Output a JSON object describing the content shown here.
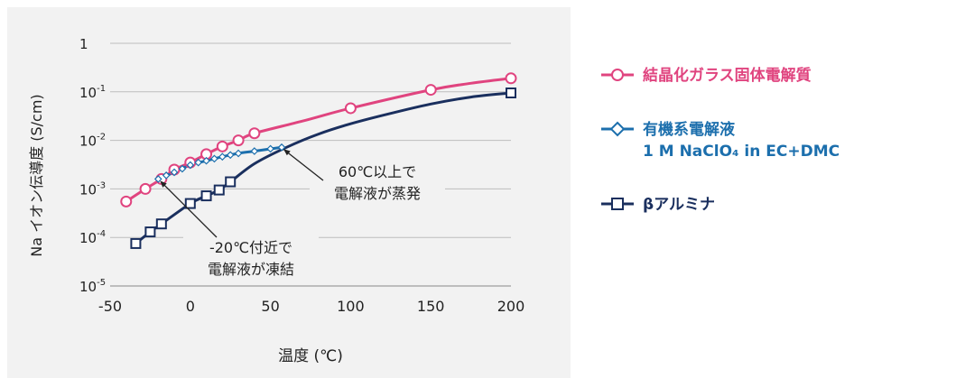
{
  "chart_data": {
    "type": "scatter",
    "title": "",
    "xlabel": "温度 (℃)",
    "ylabel": "Na イオン伝導度 (S/cm)",
    "xlim": [
      -50,
      200
    ],
    "ylim": [
      1e-05,
      1
    ],
    "yscale": "log",
    "xticks": [
      "-50",
      "0",
      "50",
      "100",
      "150",
      "200"
    ],
    "yticks": [
      {
        "base": "1",
        "exp": ""
      },
      {
        "base": "10",
        "exp": "-1"
      },
      {
        "base": "10",
        "exp": "-2"
      },
      {
        "base": "10",
        "exp": "-3"
      },
      {
        "base": "10",
        "exp": "-4"
      },
      {
        "base": "10",
        "exp": "-5"
      }
    ],
    "grid": "horizontal",
    "legend_position": "right",
    "series": [
      {
        "name": "結晶化ガラス固体電解質",
        "color": "#e0447f",
        "marker": "circle",
        "points": [
          [
            -40,
            0.00055
          ],
          [
            -28,
            0.001
          ],
          [
            -18,
            0.0016
          ],
          [
            -10,
            0.0025
          ],
          [
            0,
            0.0035
          ],
          [
            10,
            0.0052
          ],
          [
            20,
            0.0075
          ],
          [
            30,
            0.01
          ],
          [
            40,
            0.014
          ],
          [
            100,
            0.046
          ],
          [
            150,
            0.11
          ],
          [
            200,
            0.19
          ]
        ]
      },
      {
        "name": "有機系電解液",
        "name_sub": "1 M NaClO₄ in EC+DMC",
        "color": "#1c6fad",
        "marker": "diamond",
        "points": [
          [
            -20,
            0.0016
          ],
          [
            -15,
            0.0019
          ],
          [
            -10,
            0.0022
          ],
          [
            -5,
            0.0026
          ],
          [
            0,
            0.0031
          ],
          [
            5,
            0.0035
          ],
          [
            10,
            0.0038
          ],
          [
            15,
            0.0042
          ],
          [
            20,
            0.0046
          ],
          [
            25,
            0.005
          ],
          [
            30,
            0.0054
          ],
          [
            40,
            0.006
          ],
          [
            50,
            0.0067
          ],
          [
            57,
            0.0072
          ]
        ]
      },
      {
        "name": "βアルミナ",
        "color": "#1a2f5e",
        "marker": "square",
        "points": [
          [
            -34,
            7.5e-05
          ],
          [
            -25,
            0.00013
          ],
          [
            -18,
            0.00019
          ],
          [
            0,
            0.0005
          ],
          [
            10,
            0.00072
          ],
          [
            18,
            0.00095
          ],
          [
            25,
            0.0014
          ],
          [
            200,
            0.095
          ]
        ]
      }
    ],
    "curves": [
      {
        "series": 0,
        "points": [
          [
            -40,
            0.00055
          ],
          [
            -28,
            0.001
          ],
          [
            -18,
            0.0016
          ],
          [
            -10,
            0.0025
          ],
          [
            0,
            0.0035
          ],
          [
            10,
            0.0052
          ],
          [
            20,
            0.0075
          ],
          [
            30,
            0.01
          ],
          [
            40,
            0.014
          ],
          [
            70,
            0.025
          ],
          [
            100,
            0.046
          ],
          [
            150,
            0.11
          ],
          [
            175,
            0.15
          ],
          [
            200,
            0.19
          ]
        ]
      },
      {
        "series": 1,
        "points": [
          [
            -20,
            0.0016
          ],
          [
            -10,
            0.0022
          ],
          [
            0,
            0.0031
          ],
          [
            10,
            0.0038
          ],
          [
            20,
            0.0046
          ],
          [
            30,
            0.0054
          ],
          [
            40,
            0.006
          ],
          [
            50,
            0.0067
          ],
          [
            57,
            0.0072
          ]
        ]
      },
      {
        "series": 2,
        "points": [
          [
            -34,
            7.5e-05
          ],
          [
            -25,
            0.00013
          ],
          [
            -18,
            0.00019
          ],
          [
            0,
            0.0005
          ],
          [
            10,
            0.00072
          ],
          [
            18,
            0.00095
          ],
          [
            25,
            0.0014
          ],
          [
            40,
            0.0033
          ],
          [
            60,
            0.0072
          ],
          [
            80,
            0.0135
          ],
          [
            100,
            0.022
          ],
          [
            125,
            0.036
          ],
          [
            150,
            0.056
          ],
          [
            175,
            0.078
          ],
          [
            200,
            0.095
          ]
        ]
      }
    ],
    "annotations": [
      {
        "lines": [
          "60℃以上で",
          "電解液が蒸発"
        ],
        "arrow_to": [
          57,
          0.0072
        ]
      },
      {
        "lines": [
          "-20℃付近で",
          "電解液が凍結"
        ],
        "arrow_to": [
          -20,
          0.0016
        ]
      }
    ]
  }
}
